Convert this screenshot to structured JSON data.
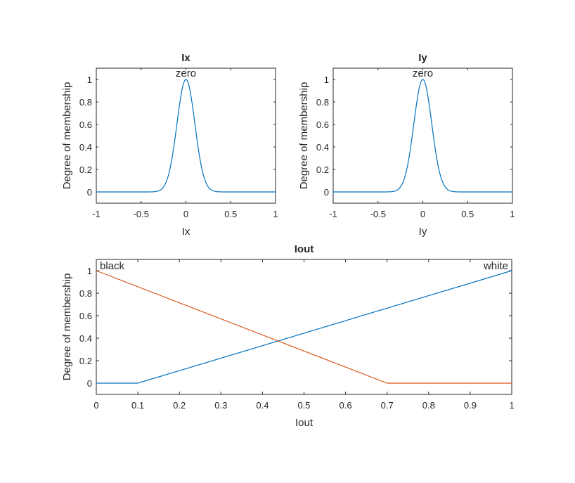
{
  "chart_data": [
    {
      "type": "line",
      "title": "Ix",
      "xlabel": "Ix",
      "ylabel": "Degree of membership",
      "xlim": [
        -1,
        1
      ],
      "ylim": [
        -0.1,
        1.1
      ],
      "xticks": [
        "-1",
        "-0.5",
        "0",
        "0.5",
        "1"
      ],
      "yticks": [
        "0",
        "0.2",
        "0.4",
        "0.6",
        "0.8",
        "1"
      ],
      "grid": false,
      "series": [
        {
          "name": "zero",
          "mf": "gaussmf",
          "sigma": 0.1,
          "center": 0,
          "color": "#0072BD",
          "label_x": 0
        }
      ]
    },
    {
      "type": "line",
      "title": "Iy",
      "xlabel": "Iy",
      "ylabel": "Degree of membership",
      "xlim": [
        -1,
        1
      ],
      "ylim": [
        -0.1,
        1.1
      ],
      "xticks": [
        "-1",
        "-0.5",
        "0",
        "0.5",
        "1"
      ],
      "yticks": [
        "0",
        "0.2",
        "0.4",
        "0.6",
        "0.8",
        "1"
      ],
      "grid": false,
      "series": [
        {
          "name": "zero",
          "mf": "gaussmf",
          "sigma": 0.1,
          "center": 0,
          "color": "#0072BD",
          "label_x": 0
        }
      ]
    },
    {
      "type": "line",
      "title": "Iout",
      "xlabel": "Iout",
      "ylabel": "Degree of membership",
      "xlim": [
        0,
        1
      ],
      "ylim": [
        -0.1,
        1.1
      ],
      "xticks": [
        "0",
        "0.1",
        "0.2",
        "0.3",
        "0.4",
        "0.5",
        "0.6",
        "0.7",
        "0.8",
        "0.9",
        "1"
      ],
      "yticks": [
        "0",
        "0.2",
        "0.4",
        "0.6",
        "0.8",
        "1"
      ],
      "grid": false,
      "series": [
        {
          "name": "white",
          "mf": "trimf",
          "x": [
            0,
            0.1,
            1
          ],
          "y": [
            0,
            0,
            1
          ],
          "color": "#0072BD",
          "label_anchor": "end",
          "label_x": 1
        },
        {
          "name": "black",
          "mf": "trimf",
          "x": [
            0,
            0.7,
            1
          ],
          "y": [
            1,
            0,
            0
          ],
          "color": "#D95319",
          "label_anchor": "start",
          "label_x": 0
        }
      ]
    }
  ]
}
